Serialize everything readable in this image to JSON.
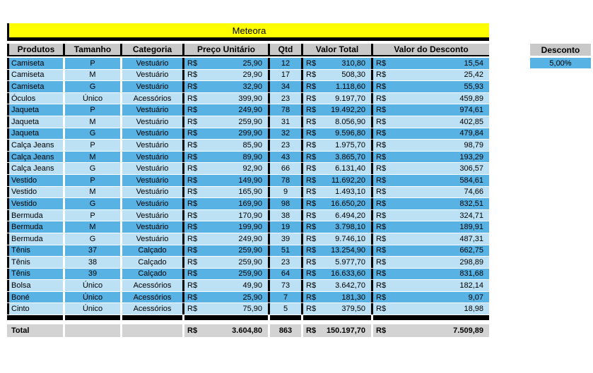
{
  "title": "Meteora",
  "colors": {
    "title_bg": "#FFFF00",
    "border": "#000000",
    "header_bg": "#C9C9C9",
    "total_bg": "#D3D3D3",
    "row_dark": "#58B2E4",
    "row_light": "#BCE0F4"
  },
  "table": {
    "headers": [
      "Produtos",
      "Tamanho",
      "Categoria",
      "Preço Unitário",
      "Qtd",
      "Valor Total",
      "Valor do Desconto"
    ],
    "currency_symbol": "R$",
    "rows": [
      {
        "produto": "Camiseta",
        "tamanho": "P",
        "categoria": "Vestuário",
        "preco_unitario": "25,90",
        "qtd": "12",
        "valor_total": "310,80",
        "valor_desconto": "15,54"
      },
      {
        "produto": "Camiseta",
        "tamanho": "M",
        "categoria": "Vestuário",
        "preco_unitario": "29,90",
        "qtd": "17",
        "valor_total": "508,30",
        "valor_desconto": "25,42"
      },
      {
        "produto": "Camiseta",
        "tamanho": "G",
        "categoria": "Vestuário",
        "preco_unitario": "32,90",
        "qtd": "34",
        "valor_total": "1.118,60",
        "valor_desconto": "55,93"
      },
      {
        "produto": "Óculos",
        "tamanho": "Único",
        "categoria": "Acessórios",
        "preco_unitario": "399,90",
        "qtd": "23",
        "valor_total": "9.197,70",
        "valor_desconto": "459,89"
      },
      {
        "produto": "Jaqueta",
        "tamanho": "P",
        "categoria": "Vestuário",
        "preco_unitario": "249,90",
        "qtd": "78",
        "valor_total": "19.492,20",
        "valor_desconto": "974,61"
      },
      {
        "produto": "Jaqueta",
        "tamanho": "M",
        "categoria": "Vestuário",
        "preco_unitario": "259,90",
        "qtd": "31",
        "valor_total": "8.056,90",
        "valor_desconto": "402,85"
      },
      {
        "produto": "Jaqueta",
        "tamanho": "G",
        "categoria": "Vestuário",
        "preco_unitario": "299,90",
        "qtd": "32",
        "valor_total": "9.596,80",
        "valor_desconto": "479,84"
      },
      {
        "produto": "Calça Jeans",
        "tamanho": "P",
        "categoria": "Vestuário",
        "preco_unitario": "85,90",
        "qtd": "23",
        "valor_total": "1.975,70",
        "valor_desconto": "98,79"
      },
      {
        "produto": "Calça Jeans",
        "tamanho": "M",
        "categoria": "Vestuário",
        "preco_unitario": "89,90",
        "qtd": "43",
        "valor_total": "3.865,70",
        "valor_desconto": "193,29"
      },
      {
        "produto": "Calça Jeans",
        "tamanho": "G",
        "categoria": "Vestuário",
        "preco_unitario": "92,90",
        "qtd": "66",
        "valor_total": "6.131,40",
        "valor_desconto": "306,57"
      },
      {
        "produto": "Vestido",
        "tamanho": "P",
        "categoria": "Vestuário",
        "preco_unitario": "149,90",
        "qtd": "78",
        "valor_total": "11.692,20",
        "valor_desconto": "584,61"
      },
      {
        "produto": "Vestido",
        "tamanho": "M",
        "categoria": "Vestuário",
        "preco_unitario": "165,90",
        "qtd": "9",
        "valor_total": "1.493,10",
        "valor_desconto": "74,66"
      },
      {
        "produto": "Vestido",
        "tamanho": "G",
        "categoria": "Vestuário",
        "preco_unitario": "169,90",
        "qtd": "98",
        "valor_total": "16.650,20",
        "valor_desconto": "832,51"
      },
      {
        "produto": "Bermuda",
        "tamanho": "P",
        "categoria": "Vestuário",
        "preco_unitario": "170,90",
        "qtd": "38",
        "valor_total": "6.494,20",
        "valor_desconto": "324,71"
      },
      {
        "produto": "Bermuda",
        "tamanho": "M",
        "categoria": "Vestuário",
        "preco_unitario": "199,90",
        "qtd": "19",
        "valor_total": "3.798,10",
        "valor_desconto": "189,91"
      },
      {
        "produto": "Bermuda",
        "tamanho": "G",
        "categoria": "Vestuário",
        "preco_unitario": "249,90",
        "qtd": "39",
        "valor_total": "9.746,10",
        "valor_desconto": "487,31"
      },
      {
        "produto": "Tênis",
        "tamanho": "37",
        "categoria": "Calçado",
        "preco_unitario": "259,90",
        "qtd": "51",
        "valor_total": "13.254,90",
        "valor_desconto": "662,75"
      },
      {
        "produto": "Tênis",
        "tamanho": "38",
        "categoria": "Calçado",
        "preco_unitario": "259,90",
        "qtd": "23",
        "valor_total": "5.977,70",
        "valor_desconto": "298,89"
      },
      {
        "produto": "Tênis",
        "tamanho": "39",
        "categoria": "Calçado",
        "preco_unitario": "259,90",
        "qtd": "64",
        "valor_total": "16.633,60",
        "valor_desconto": "831,68"
      },
      {
        "produto": "Bolsa",
        "tamanho": "Único",
        "categoria": "Acessórios",
        "preco_unitario": "49,90",
        "qtd": "73",
        "valor_total": "3.642,70",
        "valor_desconto": "182,14"
      },
      {
        "produto": "Boné",
        "tamanho": "Único",
        "categoria": "Acessórios",
        "preco_unitario": "25,90",
        "qtd": "7",
        "valor_total": "181,30",
        "valor_desconto": "9,07"
      },
      {
        "produto": "Cinto",
        "tamanho": "Único",
        "categoria": "Acessórios",
        "preco_unitario": "75,90",
        "qtd": "5",
        "valor_total": "379,50",
        "valor_desconto": "18,98"
      }
    ],
    "total": {
      "label": "Total",
      "preco_unitario": "3.604,80",
      "qtd": "863",
      "valor_total": "150.197,70",
      "valor_desconto": "7.509,89"
    }
  },
  "desconto_panel": {
    "header": "Desconto",
    "value": "5,00%"
  }
}
